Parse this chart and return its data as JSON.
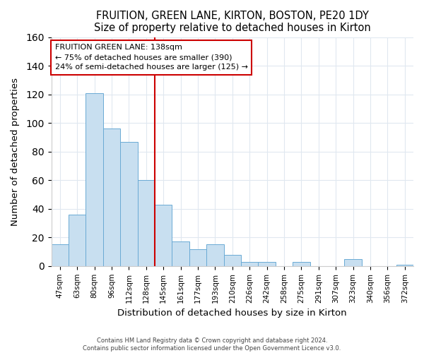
{
  "title": "FRUITION, GREEN LANE, KIRTON, BOSTON, PE20 1DY",
  "subtitle": "Size of property relative to detached houses in Kirton",
  "xlabel": "Distribution of detached houses by size in Kirton",
  "ylabel": "Number of detached properties",
  "bar_color": "#c8dff0",
  "bar_edge_color": "#6aaad4",
  "categories": [
    "47sqm",
    "63sqm",
    "80sqm",
    "96sqm",
    "112sqm",
    "128sqm",
    "145sqm",
    "161sqm",
    "177sqm",
    "193sqm",
    "210sqm",
    "226sqm",
    "242sqm",
    "258sqm",
    "275sqm",
    "291sqm",
    "307sqm",
    "323sqm",
    "340sqm",
    "356sqm",
    "372sqm"
  ],
  "values": [
    15,
    36,
    121,
    96,
    87,
    60,
    43,
    17,
    12,
    15,
    8,
    3,
    3,
    0,
    3,
    0,
    0,
    5,
    0,
    0,
    1
  ],
  "ylim": [
    0,
    160
  ],
  "yticks": [
    0,
    20,
    40,
    60,
    80,
    100,
    120,
    140,
    160
  ],
  "vline_color": "#cc0000",
  "vline_index": 6,
  "annotation_title": "FRUITION GREEN LANE: 138sqm",
  "annotation_line1": "← 75% of detached houses are smaller (390)",
  "annotation_line2": "24% of semi-detached houses are larger (125) →",
  "footer1": "Contains HM Land Registry data © Crown copyright and database right 2024.",
  "footer2": "Contains public sector information licensed under the Open Government Licence v3.0.",
  "background_color": "#ffffff",
  "grid_color": "#e0e8f0"
}
